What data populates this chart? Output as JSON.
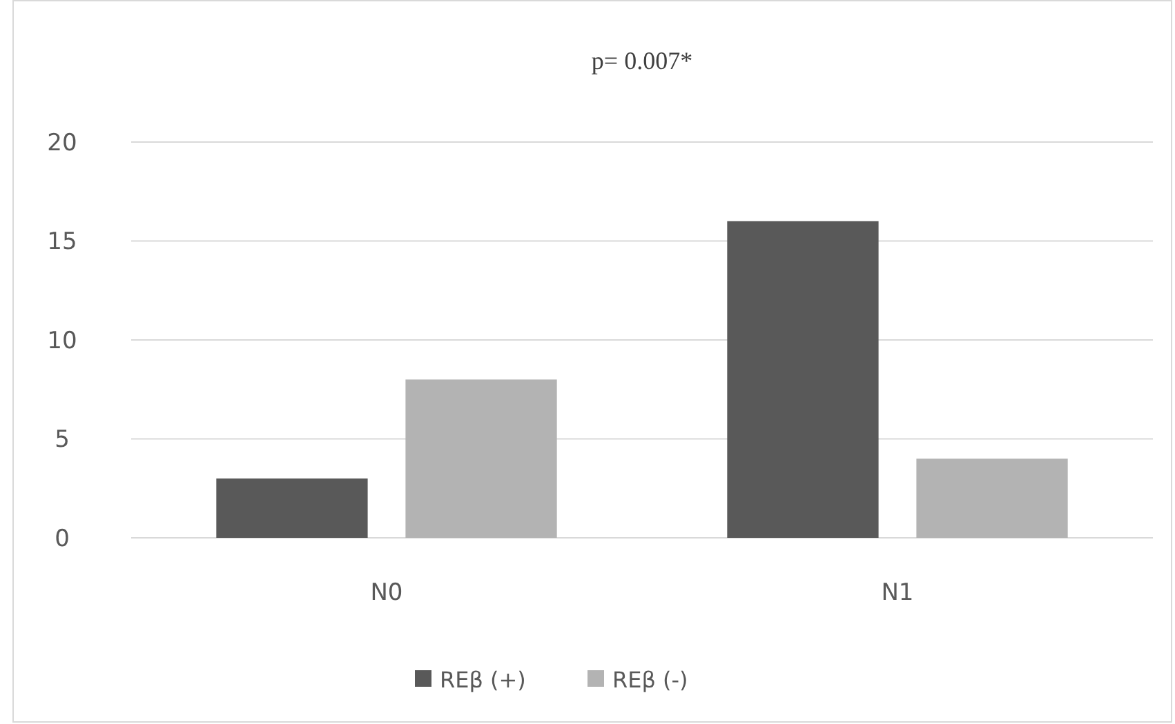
{
  "chart_data": {
    "type": "bar",
    "title": "p= 0.007*",
    "categories": [
      "N0",
      "N1"
    ],
    "series": [
      {
        "name": "REβ (+)",
        "color": "#595959",
        "values": [
          3,
          16
        ]
      },
      {
        "name": "REβ (-)",
        "color": "#b3b3b3",
        "values": [
          8,
          4
        ]
      }
    ],
    "ylim": [
      0,
      20
    ],
    "yticks": [
      0,
      5,
      10,
      15,
      20
    ],
    "grid": "y",
    "legend": "bottom"
  }
}
